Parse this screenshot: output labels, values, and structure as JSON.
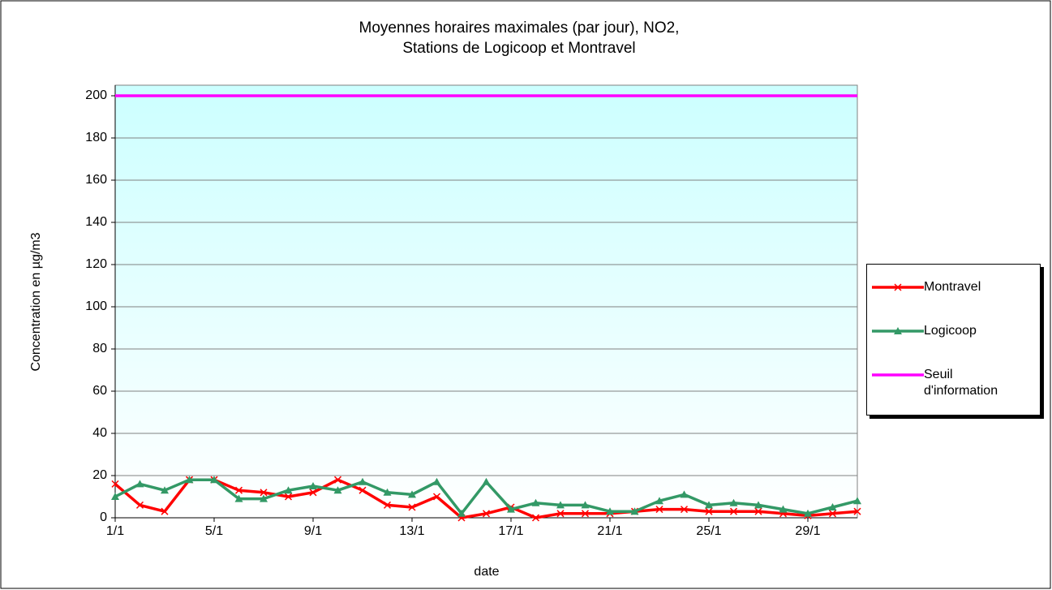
{
  "chart_data": {
    "type": "line",
    "title": [
      "Moyennes horaires maximales (par jour), NO2,",
      "Stations de Logicoop et Montravel"
    ],
    "xlabel": "date",
    "ylabel": "Concentration en µg/m3",
    "categories": [
      "1/1",
      null,
      null,
      null,
      "5/1",
      null,
      null,
      null,
      "9/1",
      null,
      null,
      null,
      "13/1",
      null,
      null,
      null,
      "17/1",
      null,
      null,
      null,
      "21/1",
      null,
      null,
      null,
      "25/1",
      null,
      null,
      null,
      "29/1",
      null,
      null
    ],
    "series": [
      {
        "name": "Montravel",
        "color": "#ff0000",
        "marker": "x",
        "values": [
          16,
          6,
          3,
          18,
          18,
          13,
          12,
          10,
          12,
          18,
          13,
          6,
          5,
          10,
          0,
          2,
          5,
          0,
          2,
          2,
          2,
          3,
          4,
          4,
          3,
          3,
          3,
          2,
          1,
          2,
          3
        ]
      },
      {
        "name": "Logicoop",
        "color": "#339966",
        "marker": "triangle",
        "values": [
          10,
          16,
          13,
          18,
          18,
          9,
          9,
          13,
          15,
          13,
          17,
          12,
          11,
          17,
          2,
          17,
          4,
          7,
          6,
          6,
          3,
          3,
          8,
          11,
          6,
          7,
          6,
          4,
          2,
          5,
          8
        ]
      },
      {
        "name": "Seuil d'information",
        "color": "#ff00ff",
        "marker": "none",
        "values": [
          200,
          200,
          200,
          200,
          200,
          200,
          200,
          200,
          200,
          200,
          200,
          200,
          200,
          200,
          200,
          200,
          200,
          200,
          200,
          200,
          200,
          200,
          200,
          200,
          200,
          200,
          200,
          200,
          200,
          200,
          200
        ]
      }
    ],
    "ylim": [
      0,
      205
    ],
    "yticks": [
      0,
      20,
      40,
      60,
      80,
      100,
      120,
      140,
      160,
      180,
      200
    ],
    "grid": true,
    "legend": "right"
  }
}
